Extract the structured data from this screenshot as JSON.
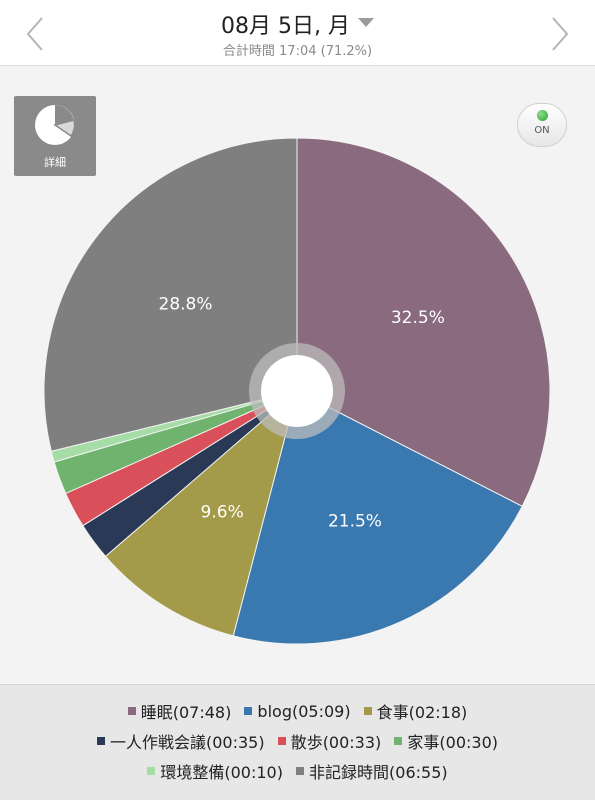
{
  "header": {
    "date": "08月 5日, 月",
    "total": "合計時間 17:04 (71.2%)"
  },
  "controls": {
    "detail_label": "詳細",
    "toggle_label": "ON"
  },
  "colors": {
    "sleep": "#8a6a7e",
    "blog": "#3a78b0",
    "meal": "#a39a4a",
    "solo_meeting": "#2a3a56",
    "walk": "#d9505a",
    "housework": "#6fb36f",
    "tidying": "#a6dca6",
    "unrecorded": "#7f7f7f"
  },
  "chart_data": {
    "type": "pie",
    "title": "",
    "slices": [
      {
        "label": "睡眠(07:48)",
        "value": 32.5,
        "display": "32.5%",
        "color_key": "sleep"
      },
      {
        "label": "blog(05:09)",
        "value": 21.5,
        "display": "21.5%",
        "color_key": "blog"
      },
      {
        "label": "食事(02:18)",
        "value": 9.6,
        "display": "9.6%",
        "color_key": "meal"
      },
      {
        "label": "一人作戦会議(00:35)",
        "value": 2.4,
        "display": "",
        "color_key": "solo_meeting"
      },
      {
        "label": "散歩(00:33)",
        "value": 2.3,
        "display": "",
        "color_key": "walk"
      },
      {
        "label": "家事(00:30)",
        "value": 2.1,
        "display": "",
        "color_key": "housework"
      },
      {
        "label": "環境整備(00:10)",
        "value": 0.7,
        "display": "",
        "color_key": "tidying"
      },
      {
        "label": "非記録時間(06:55)",
        "value": 28.8,
        "display": "28.8%",
        "color_key": "unrecorded"
      }
    ],
    "legend_position": "bottom"
  },
  "legend": {
    "rows": [
      [
        "睡眠(07:48)",
        "blog(05:09)",
        "食事(02:18)"
      ],
      [
        "一人作戦会議(00:35)",
        "散歩(00:33)",
        "家事(00:30)"
      ],
      [
        "環境整備(00:10)",
        "非記録時間(06:55)"
      ]
    ]
  }
}
